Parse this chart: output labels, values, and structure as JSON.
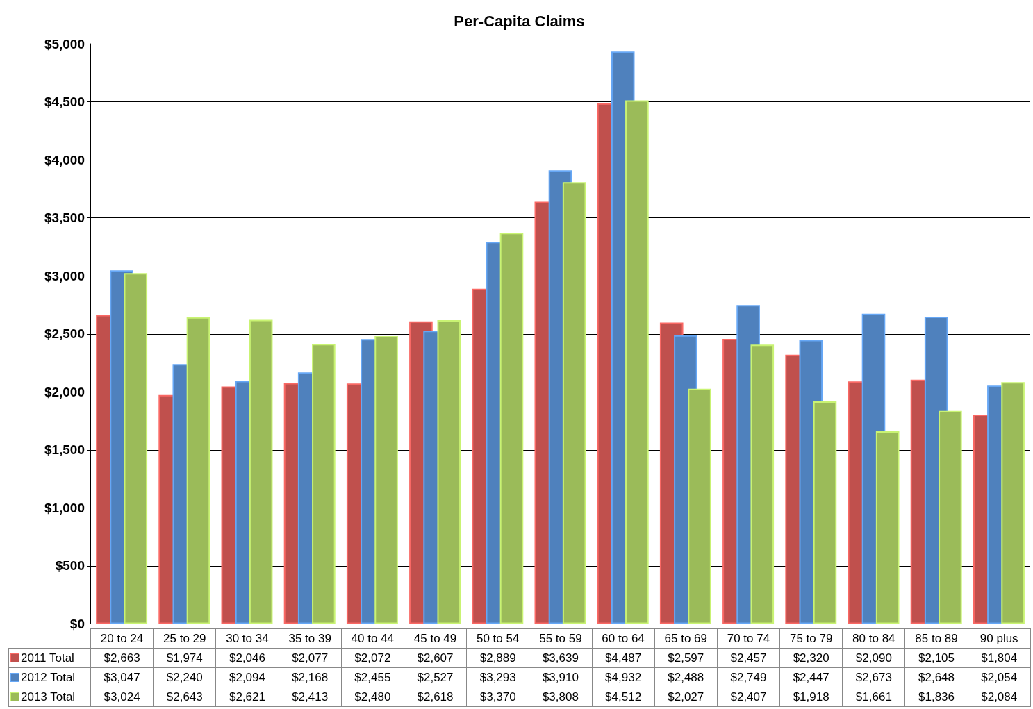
{
  "chart_data": {
    "type": "bar",
    "title": "Per-Capita Claims",
    "categories": [
      "20 to 24",
      "25 to 29",
      "30 to 34",
      "35 to 39",
      "40 to 44",
      "45 to 49",
      "50 to 54",
      "55 to 59",
      "60 to 64",
      "65 to 69",
      "70 to 74",
      "75 to 79",
      "80 to 84",
      "85 to 89",
      "90 plus"
    ],
    "series": [
      {
        "name": "2011 Total",
        "color": "#c0504d",
        "values": [
          2663,
          1974,
          2046,
          2077,
          2072,
          2607,
          2889,
          3639,
          4487,
          2597,
          2457,
          2320,
          2090,
          2105,
          1804
        ],
        "value_labels": [
          "$2,663",
          "$1,974",
          "$2,046",
          "$2,077",
          "$2,072",
          "$2,607",
          "$2,889",
          "$3,639",
          "$4,487",
          "$2,597",
          "$2,457",
          "$2,320",
          "$2,090",
          "$2,105",
          "$1,804"
        ]
      },
      {
        "name": "2012 Total",
        "color": "#4f81bd",
        "values": [
          3047,
          2240,
          2094,
          2168,
          2455,
          2527,
          3293,
          3910,
          4932,
          2488,
          2749,
          2447,
          2673,
          2648,
          2054
        ],
        "value_labels": [
          "$3,047",
          "$2,240",
          "$2,094",
          "$2,168",
          "$2,455",
          "$2,527",
          "$3,293",
          "$3,910",
          "$4,932",
          "$2,488",
          "$2,749",
          "$2,447",
          "$2,673",
          "$2,648",
          "$2,054"
        ]
      },
      {
        "name": "2013 Total",
        "color": "#9bbb59",
        "values": [
          3024,
          2643,
          2621,
          2413,
          2480,
          2618,
          3370,
          3808,
          4512,
          2027,
          2407,
          1918,
          1661,
          1836,
          2084
        ],
        "value_labels": [
          "$3,024",
          "$2,643",
          "$2,621",
          "$2,413",
          "$2,480",
          "$2,618",
          "$3,370",
          "$3,808",
          "$4,512",
          "$2,027",
          "$2,407",
          "$1,918",
          "$1,661",
          "$1,836",
          "$2,084"
        ]
      }
    ],
    "ylim": [
      0,
      5000
    ],
    "yticks": [
      {
        "value": 0,
        "label": "$0"
      },
      {
        "value": 500,
        "label": "$500"
      },
      {
        "value": 1000,
        "label": "$1,000"
      },
      {
        "value": 1500,
        "label": "$1,500"
      },
      {
        "value": 2000,
        "label": "$2,000"
      },
      {
        "value": 2500,
        "label": "$2,500"
      },
      {
        "value": 3000,
        "label": "$3,000"
      },
      {
        "value": 3500,
        "label": "$3,500"
      },
      {
        "value": 4000,
        "label": "$4,000"
      },
      {
        "value": 4500,
        "label": "$4,500"
      },
      {
        "value": 5000,
        "label": "$5,000"
      }
    ],
    "grid": "y",
    "legend": "bottom"
  }
}
